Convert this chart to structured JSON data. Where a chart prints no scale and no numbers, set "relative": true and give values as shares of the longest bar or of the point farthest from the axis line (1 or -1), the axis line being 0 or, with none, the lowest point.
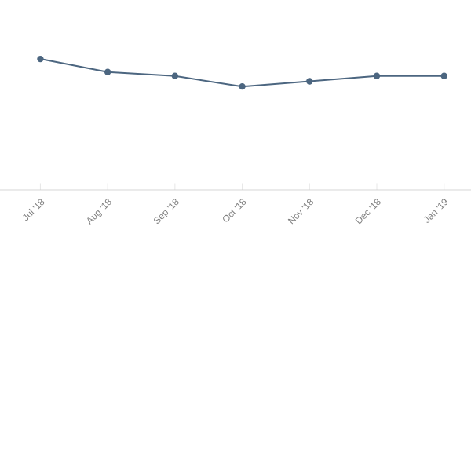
{
  "chart_data": {
    "type": "line",
    "relative": true,
    "marker": "circle",
    "line_style": "solid",
    "categories": [
      "Jul '18",
      "Aug '18",
      "Sep '18",
      "Oct '18",
      "Nov '18",
      "Dec '18",
      "Jan '19"
    ],
    "series": [
      {
        "color": "#4c6680",
        "values": [
          1,
          0.9,
          0.87,
          0.79,
          0.83,
          0.87,
          0.87
        ]
      }
    ]
  }
}
